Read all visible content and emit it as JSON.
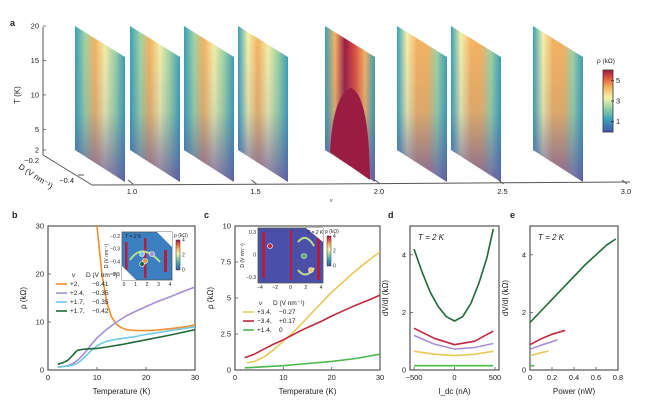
{
  "chart_data": [
    {
      "panel": "a",
      "type": "heatmap",
      "title": "",
      "xlabel": "ν",
      "ylabel": "T (K)",
      "zlabel": "D (V nm⁻¹)",
      "x_ticks": [
        "1.0",
        "1.5",
        "2.0",
        "2.5",
        "3.0"
      ],
      "xlim": [
        0.75,
        3.0
      ],
      "y_ticks": [
        "2",
        "5",
        "10",
        "15",
        "20"
      ],
      "ylim": [
        2,
        20
      ],
      "z_ticks": [
        "−0.2",
        "−0.4"
      ],
      "colorbar": {
        "label": "ρ (kΩ)",
        "ticks": [
          "1",
          "3",
          "5"
        ],
        "range": [
          0,
          6
        ],
        "colormap": "spectral"
      },
      "slices": [
        {
          "nu": 0.8,
          "pattern": "v-shape",
          "peak_rho": 3.5,
          "insulating": false
        },
        {
          "nu": 1.0,
          "pattern": "v-shape",
          "peak_rho": 3.6,
          "insulating": false
        },
        {
          "nu": 1.2,
          "pattern": "dome",
          "peak_rho": 3.8,
          "insulating": false
        },
        {
          "nu": 1.4,
          "pattern": "dome",
          "peak_rho": 4.0,
          "insulating": false
        },
        {
          "nu": 2.0,
          "pattern": "insulating-dome",
          "peak_rho": 6.0,
          "insulating": true
        },
        {
          "nu": 2.3,
          "pattern": "dome",
          "peak_rho": 4.4,
          "insulating": false
        },
        {
          "nu": 2.5,
          "pattern": "dome",
          "peak_rho": 4.2,
          "insulating": false
        },
        {
          "nu": 2.8,
          "pattern": "dome",
          "peak_rho": 4.3,
          "insulating": false
        }
      ]
    },
    {
      "panel": "b",
      "type": "line",
      "xlabel": "Temperature (K)",
      "ylabel": "ρ (kΩ)",
      "xlim": [
        0,
        30
      ],
      "ylim": [
        0,
        30
      ],
      "x_ticks": [
        "0",
        "10",
        "20",
        "30"
      ],
      "y_ticks": [
        "0",
        "10",
        "20",
        "30"
      ],
      "legend": {
        "header": [
          "ν",
          "D (V nm⁻¹)"
        ],
        "placement": "center-left"
      },
      "inset": {
        "label": "T = 2 K",
        "xlabel": "ν",
        "ylabel": "D (V nm⁻¹)",
        "x_ticks": [
          "0",
          "1",
          "2",
          "3",
          "4"
        ],
        "y_ticks": [
          "−0.2",
          "−0.3",
          "−0.4",
          "−0.5"
        ],
        "cbar_label": "ρ (kΩ)",
        "cbar_ticks": [
          "0",
          "2",
          "4"
        ]
      },
      "series": [
        {
          "name": "+2,   −0.41",
          "color": "#f28e2b",
          "x": [
            10,
            11,
            12,
            13,
            14,
            15,
            16,
            18,
            20,
            22,
            25,
            28,
            30
          ],
          "y": [
            30,
            20,
            14,
            11,
            9.5,
            8.8,
            8.4,
            8.2,
            8.2,
            8.3,
            8.6,
            9.0,
            9.4
          ]
        },
        {
          "name": "+2.4, −0.35",
          "color": "#a48fd6",
          "x": [
            2,
            3,
            4,
            5,
            6,
            7,
            8,
            9,
            10,
            12,
            14,
            16,
            18,
            20,
            22,
            25,
            28,
            30
          ],
          "y": [
            0.6,
            0.7,
            0.9,
            1.3,
            2.0,
            3.0,
            4.2,
            5.5,
            6.7,
            8.5,
            10.0,
            11.3,
            12.3,
            13.2,
            14.1,
            15.3,
            16.5,
            17.3
          ]
        },
        {
          "name": "+1.7, −0.35",
          "color": "#6ec8e6",
          "x": [
            2,
            3,
            4,
            5,
            6,
            7,
            8,
            9,
            10,
            11,
            12,
            14,
            16,
            18,
            20,
            25,
            30
          ],
          "y": [
            0.6,
            0.7,
            0.8,
            1.0,
            1.4,
            2.2,
            3.2,
            4.2,
            5.0,
            5.6,
            6.0,
            6.4,
            6.7,
            7.0,
            7.4,
            8.2,
            9.0
          ]
        },
        {
          "name": "+1.7, −0.42",
          "color": "#1e6b3a",
          "x": [
            2,
            3,
            4,
            5,
            5.5,
            6,
            7,
            8,
            10,
            12,
            15,
            18,
            20,
            25,
            30
          ],
          "y": [
            1.2,
            1.5,
            2.0,
            3.0,
            3.6,
            4.1,
            4.3,
            4.4,
            4.5,
            4.8,
            5.3,
            5.9,
            6.3,
            7.3,
            8.4
          ]
        }
      ]
    },
    {
      "panel": "c",
      "type": "line",
      "xlabel": "Temperature (K)",
      "ylabel": "ρ (kΩ)",
      "xlim": [
        0,
        30
      ],
      "ylim": [
        0,
        10
      ],
      "x_ticks": [
        "0",
        "10",
        "20",
        "30"
      ],
      "y_ticks": [
        "0",
        "2.5",
        "5",
        "7.5",
        "10"
      ],
      "legend": {
        "header": [
          "ν",
          "D (V nm⁻¹)"
        ],
        "placement": "center-left"
      },
      "inset": {
        "label": "T = 2 K",
        "xlabel": "ν",
        "ylabel": "D (V nm⁻¹)",
        "x_ticks": [
          "−4",
          "−2",
          "0",
          "2",
          "4"
        ],
        "y_ticks": [
          "0.3",
          "0",
          "−0.3"
        ],
        "cbar_label": "ρ (kΩ)",
        "cbar_ticks": [
          "0",
          "2",
          "4"
        ]
      },
      "series": [
        {
          "name": "+3.4, −0.27",
          "color": "#e8c85a",
          "x": [
            2.5,
            4,
            6,
            8,
            10,
            12,
            14,
            16,
            18,
            20,
            22,
            25,
            28,
            30
          ],
          "y": [
            0.5,
            0.6,
            0.9,
            1.4,
            2.0,
            2.6,
            3.3,
            4.0,
            4.7,
            5.4,
            6.0,
            6.9,
            7.7,
            8.2
          ]
        },
        {
          "name": "−3.4, +0.17",
          "color": "#c0283c",
          "x": [
            2,
            4,
            6,
            8,
            10,
            12,
            14,
            16,
            18,
            20,
            22,
            25,
            28,
            30
          ],
          "y": [
            0.85,
            1.1,
            1.45,
            1.8,
            2.1,
            2.45,
            2.8,
            3.1,
            3.4,
            3.75,
            4.05,
            4.5,
            4.9,
            5.2
          ]
        },
        {
          "name": "+1.4, 0",
          "color": "#4cb84c",
          "x": [
            2,
            5,
            10,
            15,
            20,
            25,
            30
          ],
          "y": [
            0.15,
            0.2,
            0.3,
            0.45,
            0.6,
            0.8,
            1.1
          ]
        }
      ]
    },
    {
      "panel": "d",
      "type": "line",
      "annotation": "T = 2 K",
      "xlabel": "I_dc (nA)",
      "ylabel": "dV/dI (kΩ)",
      "xlim": [
        -550,
        550
      ],
      "ylim": [
        0,
        5
      ],
      "x_ticks": [
        "−500",
        "0",
        "500"
      ],
      "y_ticks": [
        "0",
        "2",
        "4"
      ],
      "series": [
        {
          "name": "+1.7, −0.42",
          "color": "#1e6b3a",
          "x": [
            -500,
            -400,
            -300,
            -200,
            -100,
            0,
            100,
            200,
            300,
            400,
            480
          ],
          "y": [
            4.2,
            3.4,
            2.7,
            2.2,
            1.85,
            1.7,
            1.85,
            2.3,
            3.0,
            3.9,
            4.9
          ]
        },
        {
          "name": "−3.4, +0.17",
          "color": "#c0283c",
          "x": [
            -500,
            -250,
            0,
            250,
            480
          ],
          "y": [
            1.45,
            1.1,
            0.88,
            1.0,
            1.35
          ]
        },
        {
          "name": "+2.4, −0.35",
          "color": "#a48fd6",
          "x": [
            -500,
            -250,
            0,
            250,
            480
          ],
          "y": [
            1.2,
            0.9,
            0.73,
            0.78,
            0.92
          ]
        },
        {
          "name": "+3.4, −0.27",
          "color": "#e8c85a",
          "x": [
            -500,
            -250,
            0,
            250,
            480
          ],
          "y": [
            0.65,
            0.55,
            0.5,
            0.55,
            0.65
          ]
        },
        {
          "name": "+1.4, 0",
          "color": "#4cb84c",
          "x": [
            -500,
            0,
            480
          ],
          "y": [
            0.15,
            0.15,
            0.15
          ]
        }
      ]
    },
    {
      "panel": "e",
      "type": "line",
      "annotation": "T = 2 K",
      "xlabel": "Power (nW)",
      "ylabel": "dV/dI (kΩ)",
      "xlim": [
        0,
        0.8
      ],
      "ylim": [
        0,
        5
      ],
      "x_ticks": [
        "0",
        "0.2",
        "0.4",
        "0.6",
        "0.8"
      ],
      "y_ticks": [
        "0",
        "2",
        "4"
      ],
      "series": [
        {
          "name": "+1.7, −0.42",
          "color": "#1e6b3a",
          "x": [
            0,
            0.1,
            0.2,
            0.3,
            0.4,
            0.5,
            0.6,
            0.7,
            0.78
          ],
          "y": [
            1.65,
            2.05,
            2.45,
            2.85,
            3.25,
            3.65,
            4.0,
            4.35,
            4.55
          ]
        },
        {
          "name": "−3.4, +0.17",
          "color": "#c0283c",
          "x": [
            0,
            0.1,
            0.2,
            0.32
          ],
          "y": [
            0.88,
            1.08,
            1.24,
            1.38
          ]
        },
        {
          "name": "+2.4, −0.35",
          "color": "#a48fd6",
          "x": [
            0,
            0.1,
            0.2,
            0.25
          ],
          "y": [
            0.72,
            0.86,
            0.98,
            1.05
          ]
        },
        {
          "name": "+3.4, −0.27",
          "color": "#e8c85a",
          "x": [
            0,
            0.08,
            0.17
          ],
          "y": [
            0.5,
            0.58,
            0.66
          ]
        },
        {
          "name": "+1.4, 0",
          "color": "#4cb84c",
          "x": [
            0,
            0.04
          ],
          "y": [
            0.15,
            0.15
          ]
        }
      ]
    }
  ],
  "panel_labels": [
    "a",
    "b",
    "c",
    "d",
    "e"
  ]
}
